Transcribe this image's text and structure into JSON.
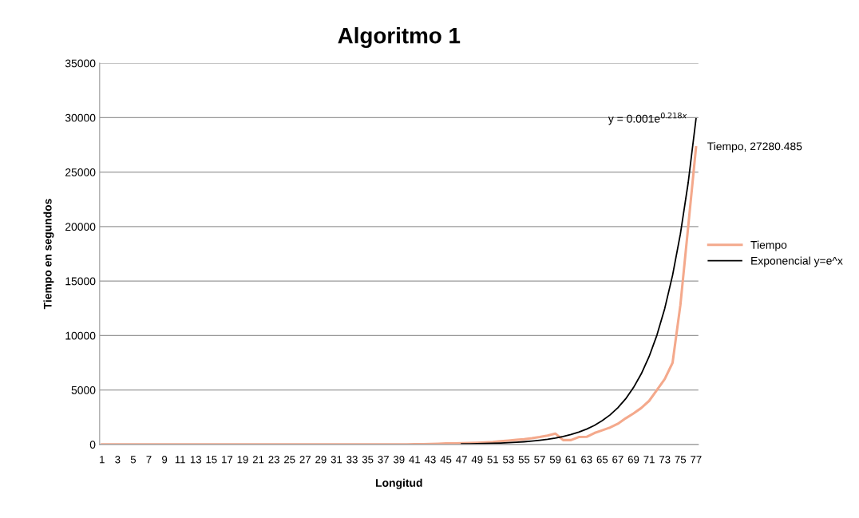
{
  "chart_data": {
    "type": "line",
    "title": "Algoritmo 1",
    "xlabel": "Longitud",
    "ylabel": "Tiempo en segundos",
    "categories": [
      "1",
      null,
      "3",
      null,
      "5",
      null,
      "7",
      null,
      "9",
      null,
      "11",
      null,
      "13",
      null,
      "15",
      null,
      "17",
      null,
      "19",
      null,
      "21",
      null,
      "23",
      null,
      "25",
      null,
      "27",
      null,
      "29",
      null,
      "31",
      null,
      "33",
      null,
      "35",
      null,
      "37",
      null,
      "39",
      null,
      "41",
      null,
      "43",
      null,
      "45",
      null,
      "47",
      null,
      "49",
      null,
      "51",
      null,
      "53",
      null,
      "55",
      null,
      "57",
      null,
      "59",
      null,
      "61",
      null,
      "63",
      null,
      "65",
      null,
      "67",
      null,
      "69",
      null,
      "71",
      null,
      "73",
      null,
      "75",
      null,
      "77"
    ],
    "series": [
      {
        "name": "Tiempo",
        "color": "#f4a98c",
        "values": [
          0,
          0,
          0,
          0,
          0,
          0,
          0,
          0,
          0,
          0,
          0,
          0,
          0,
          0,
          0,
          0,
          0,
          0,
          0,
          0,
          0,
          0,
          0,
          0,
          0,
          0,
          0,
          0,
          0,
          0,
          0,
          0,
          0,
          0,
          0,
          0,
          0,
          0,
          0,
          0,
          20,
          30,
          40,
          60,
          90,
          100,
          110,
          130,
          150,
          180,
          220,
          300,
          360,
          420,
          480,
          570,
          680,
          820,
          1000,
          400,
          400,
          680,
          700,
          1050,
          1300,
          1550,
          1900,
          2400,
          2850,
          3350,
          4000,
          5000,
          6000,
          7500,
          12800,
          20000,
          27280.485
        ]
      },
      {
        "name": "Exponencial y=e^x",
        "color": "#000000",
        "values": [
          null,
          null,
          null,
          null,
          null,
          null,
          null,
          null,
          null,
          null,
          null,
          null,
          null,
          null,
          null,
          null,
          null,
          null,
          null,
          null,
          null,
          null,
          null,
          null,
          null,
          null,
          null,
          null,
          null,
          null,
          null,
          null,
          null,
          null,
          null,
          null,
          null,
          null,
          null,
          null,
          null,
          null,
          null,
          null,
          null,
          null,
          43,
          53,
          66,
          82,
          102,
          127,
          158,
          197,
          245,
          305,
          380,
          470,
          590,
          730,
          910,
          1130,
          1410,
          1750,
          2180,
          2710,
          3370,
          4190,
          5220,
          6490,
          8070,
          10040,
          12490,
          15530,
          19320,
          24040,
          29900
        ]
      }
    ],
    "annotations": [
      {
        "text": "y = 0.001e$^{0.218x}$",
        "x": "77",
        "y": 29900
      },
      {
        "text": "Tiempo, 27280.485",
        "x": "77",
        "y": 27280.485
      }
    ],
    "ylim": [
      0,
      35000
    ],
    "yticks": [
      0,
      5000,
      10000,
      15000,
      20000,
      25000,
      30000,
      35000
    ],
    "grid": "y",
    "legend": "right",
    "marker": "none",
    "line_style": "solid"
  }
}
